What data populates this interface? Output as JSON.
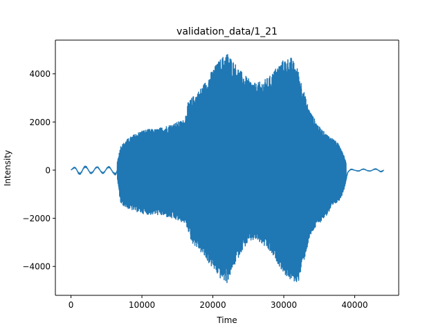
{
  "chart_data": {
    "type": "line",
    "title": "validation_data/1_21",
    "xlabel": "Time",
    "ylabel": "Intensity",
    "xlim": [
      -2200,
      46200
    ],
    "ylim": [
      -5200,
      5400
    ],
    "xticks": [
      0,
      10000,
      20000,
      30000,
      40000
    ],
    "xtick_labels": [
      "0",
      "10000",
      "20000",
      "30000",
      "40000"
    ],
    "yticks": [
      -4000,
      -2000,
      0,
      2000,
      4000
    ],
    "ytick_labels": [
      "−4000",
      "−2000",
      "0",
      "2000",
      "4000"
    ],
    "grid": false,
    "series": [
      {
        "color": "#1f77b4",
        "n_samples": 44100,
        "x_range": [
          0,
          44100
        ],
        "envelope_upper": {
          "x": [
            0,
            1000,
            2000,
            3000,
            4000,
            5000,
            6000,
            6500,
            7000,
            8000,
            9000,
            10000,
            11000,
            12000,
            13000,
            14000,
            15000,
            16000,
            16500,
            17000,
            18000,
            19000,
            20000,
            21000,
            22000,
            23000,
            24000,
            25000,
            26000,
            27000,
            28000,
            29000,
            30000,
            31000,
            32000,
            33000,
            33500,
            34000,
            35000,
            36000,
            37000,
            38000,
            38500,
            39000,
            40000,
            41000,
            42000,
            43000,
            44100
          ],
          "y": [
            50,
            220,
            180,
            160,
            150,
            160,
            150,
            300,
            1000,
            1300,
            1500,
            1650,
            1700,
            1700,
            1800,
            1900,
            2000,
            2100,
            2800,
            3000,
            3300,
            3700,
            4200,
            4600,
            4900,
            4500,
            4100,
            3800,
            3600,
            3700,
            3900,
            4300,
            4600,
            4700,
            4200,
            3100,
            2600,
            2300,
            1800,
            1500,
            1300,
            1000,
            600,
            80,
            20,
            60,
            30,
            60,
            100
          ]
        },
        "envelope_lower": {
          "x": [
            0,
            1000,
            2000,
            3000,
            4000,
            5000,
            6000,
            6500,
            7000,
            8000,
            9000,
            10000,
            11000,
            12000,
            13000,
            14000,
            15000,
            16000,
            16500,
            17000,
            18000,
            19000,
            20000,
            21000,
            22000,
            23000,
            24000,
            25000,
            26000,
            27000,
            28000,
            29000,
            30000,
            31000,
            32000,
            33000,
            33500,
            34000,
            35000,
            36000,
            37000,
            38000,
            38500,
            39000,
            40000,
            41000,
            42000,
            43000,
            44100
          ],
          "y": [
            -40,
            -200,
            -180,
            -150,
            -140,
            -150,
            -150,
            -300,
            -1400,
            -1600,
            -1700,
            -1800,
            -1850,
            -1850,
            -1900,
            -2000,
            -2100,
            -2200,
            -2500,
            -3000,
            -3300,
            -3700,
            -4100,
            -4500,
            -4700,
            -4000,
            -3400,
            -3000,
            -2900,
            -3100,
            -3400,
            -3800,
            -4300,
            -4600,
            -4700,
            -3600,
            -3000,
            -2600,
            -2200,
            -1900,
            -1500,
            -1200,
            -800,
            -150,
            -30,
            -60,
            -40,
            -60,
            -80
          ]
        }
      }
    ]
  }
}
